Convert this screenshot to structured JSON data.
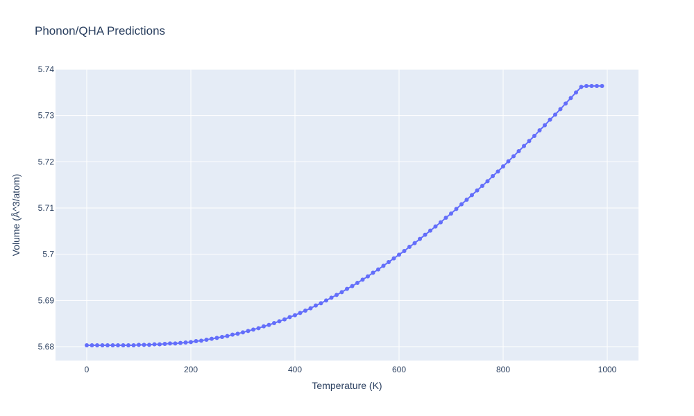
{
  "chart_data": {
    "type": "line",
    "title": "Phonon/QHA Predictions",
    "xlabel": "Temperature (K)",
    "ylabel": "Volume (Å^3/atom)",
    "xlim": [
      -60,
      1060
    ],
    "ylim": [
      5.677,
      5.74
    ],
    "x_ticks": [
      0,
      200,
      400,
      600,
      800,
      1000
    ],
    "x_tick_labels": [
      "0",
      "200",
      "400",
      "600",
      "800",
      "1000"
    ],
    "y_ticks": [
      5.68,
      5.69,
      5.7,
      5.71,
      5.72,
      5.73,
      5.74
    ],
    "y_tick_labels": [
      "5.68",
      "5.69",
      "5.7",
      "5.71",
      "5.72",
      "5.73",
      "5.74"
    ],
    "grid": true,
    "series": [
      {
        "mode": "lines+markers",
        "color": "#636efa",
        "x": [
          0,
          10,
          20,
          30,
          40,
          50,
          60,
          70,
          80,
          90,
          100,
          110,
          120,
          130,
          140,
          150,
          160,
          170,
          180,
          190,
          200,
          210,
          220,
          230,
          240,
          250,
          260,
          270,
          280,
          290,
          300,
          310,
          320,
          330,
          340,
          350,
          360,
          370,
          380,
          390,
          400,
          410,
          420,
          430,
          440,
          450,
          460,
          470,
          480,
          490,
          500,
          510,
          520,
          530,
          540,
          550,
          560,
          570,
          580,
          590,
          600,
          610,
          620,
          630,
          640,
          650,
          660,
          670,
          680,
          690,
          700,
          710,
          720,
          730,
          740,
          750,
          760,
          770,
          780,
          790,
          800,
          810,
          820,
          830,
          840,
          850,
          860,
          870,
          880,
          890,
          900,
          910,
          920,
          930,
          940,
          950,
          960,
          970,
          980,
          990
        ],
        "y": [
          5.6803,
          5.6803,
          5.6803,
          5.6803,
          5.6803,
          5.6803,
          5.6803,
          5.6803,
          5.6803,
          5.6803,
          5.6804,
          5.6804,
          5.6804,
          5.6805,
          5.6805,
          5.6806,
          5.6807,
          5.6807,
          5.6808,
          5.6809,
          5.681,
          5.6812,
          5.6813,
          5.6815,
          5.6817,
          5.6819,
          5.6821,
          5.6823,
          5.6826,
          5.6828,
          5.6831,
          5.6834,
          5.6837,
          5.684,
          5.6844,
          5.6847,
          5.6851,
          5.6855,
          5.6859,
          5.6864,
          5.6868,
          5.6873,
          5.6878,
          5.6883,
          5.6889,
          5.6894,
          5.69,
          5.6906,
          5.6912,
          5.6918,
          5.6925,
          5.6931,
          5.6938,
          5.6945,
          5.6952,
          5.696,
          5.6967,
          5.6975,
          5.6983,
          5.6991,
          5.6999,
          5.7007,
          5.7016,
          5.7024,
          5.7033,
          5.7042,
          5.7051,
          5.706,
          5.7069,
          5.7079,
          5.7088,
          5.7098,
          5.7108,
          5.7118,
          5.7128,
          5.7138,
          5.7148,
          5.7158,
          5.7169,
          5.7179,
          5.719,
          5.7201,
          5.7212,
          5.7223,
          5.7234,
          5.7245,
          5.7256,
          5.7268,
          5.7279,
          5.7291,
          5.7302,
          5.7314,
          5.7326,
          5.7338,
          5.735,
          5.7362,
          5.7364,
          5.7364,
          5.7364,
          5.7364
        ]
      }
    ]
  }
}
